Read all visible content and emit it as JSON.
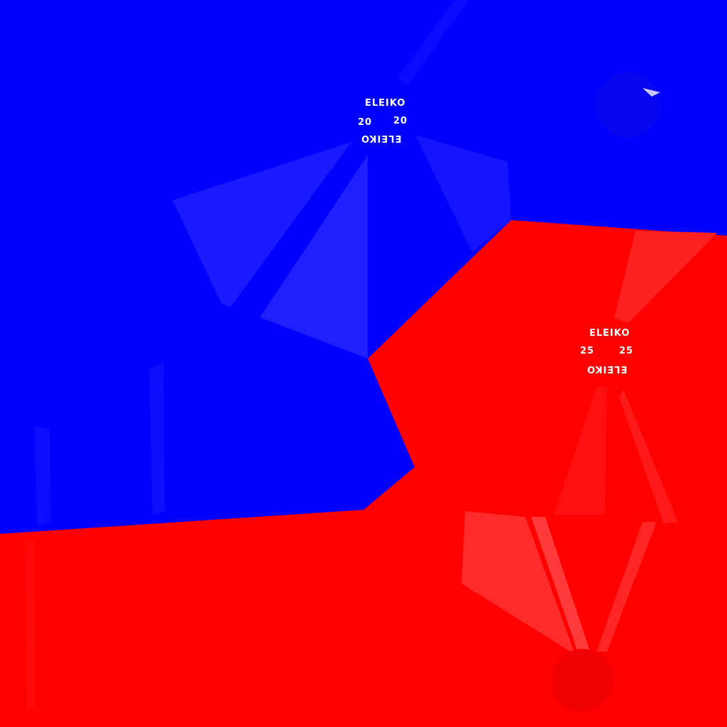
{
  "colors": {
    "blue_plate": "#0000ff",
    "blue_face": "#1a1aff",
    "blue_face_light": "#2a2aff",
    "red_plate": "#ff0000",
    "red_face": "#ff2020",
    "red_face_light": "#ff3a3a",
    "text": "#ffffff"
  },
  "plates": [
    {
      "color": "blue",
      "brand_top": "ELEIKO",
      "weight_left": "20",
      "weight_right": "20",
      "brand_bottom": "ELEIKO"
    },
    {
      "color": "red",
      "brand_top": "ELEIKO",
      "weight_left": "25",
      "weight_right": "25",
      "brand_bottom": "ELEIKO"
    }
  ]
}
